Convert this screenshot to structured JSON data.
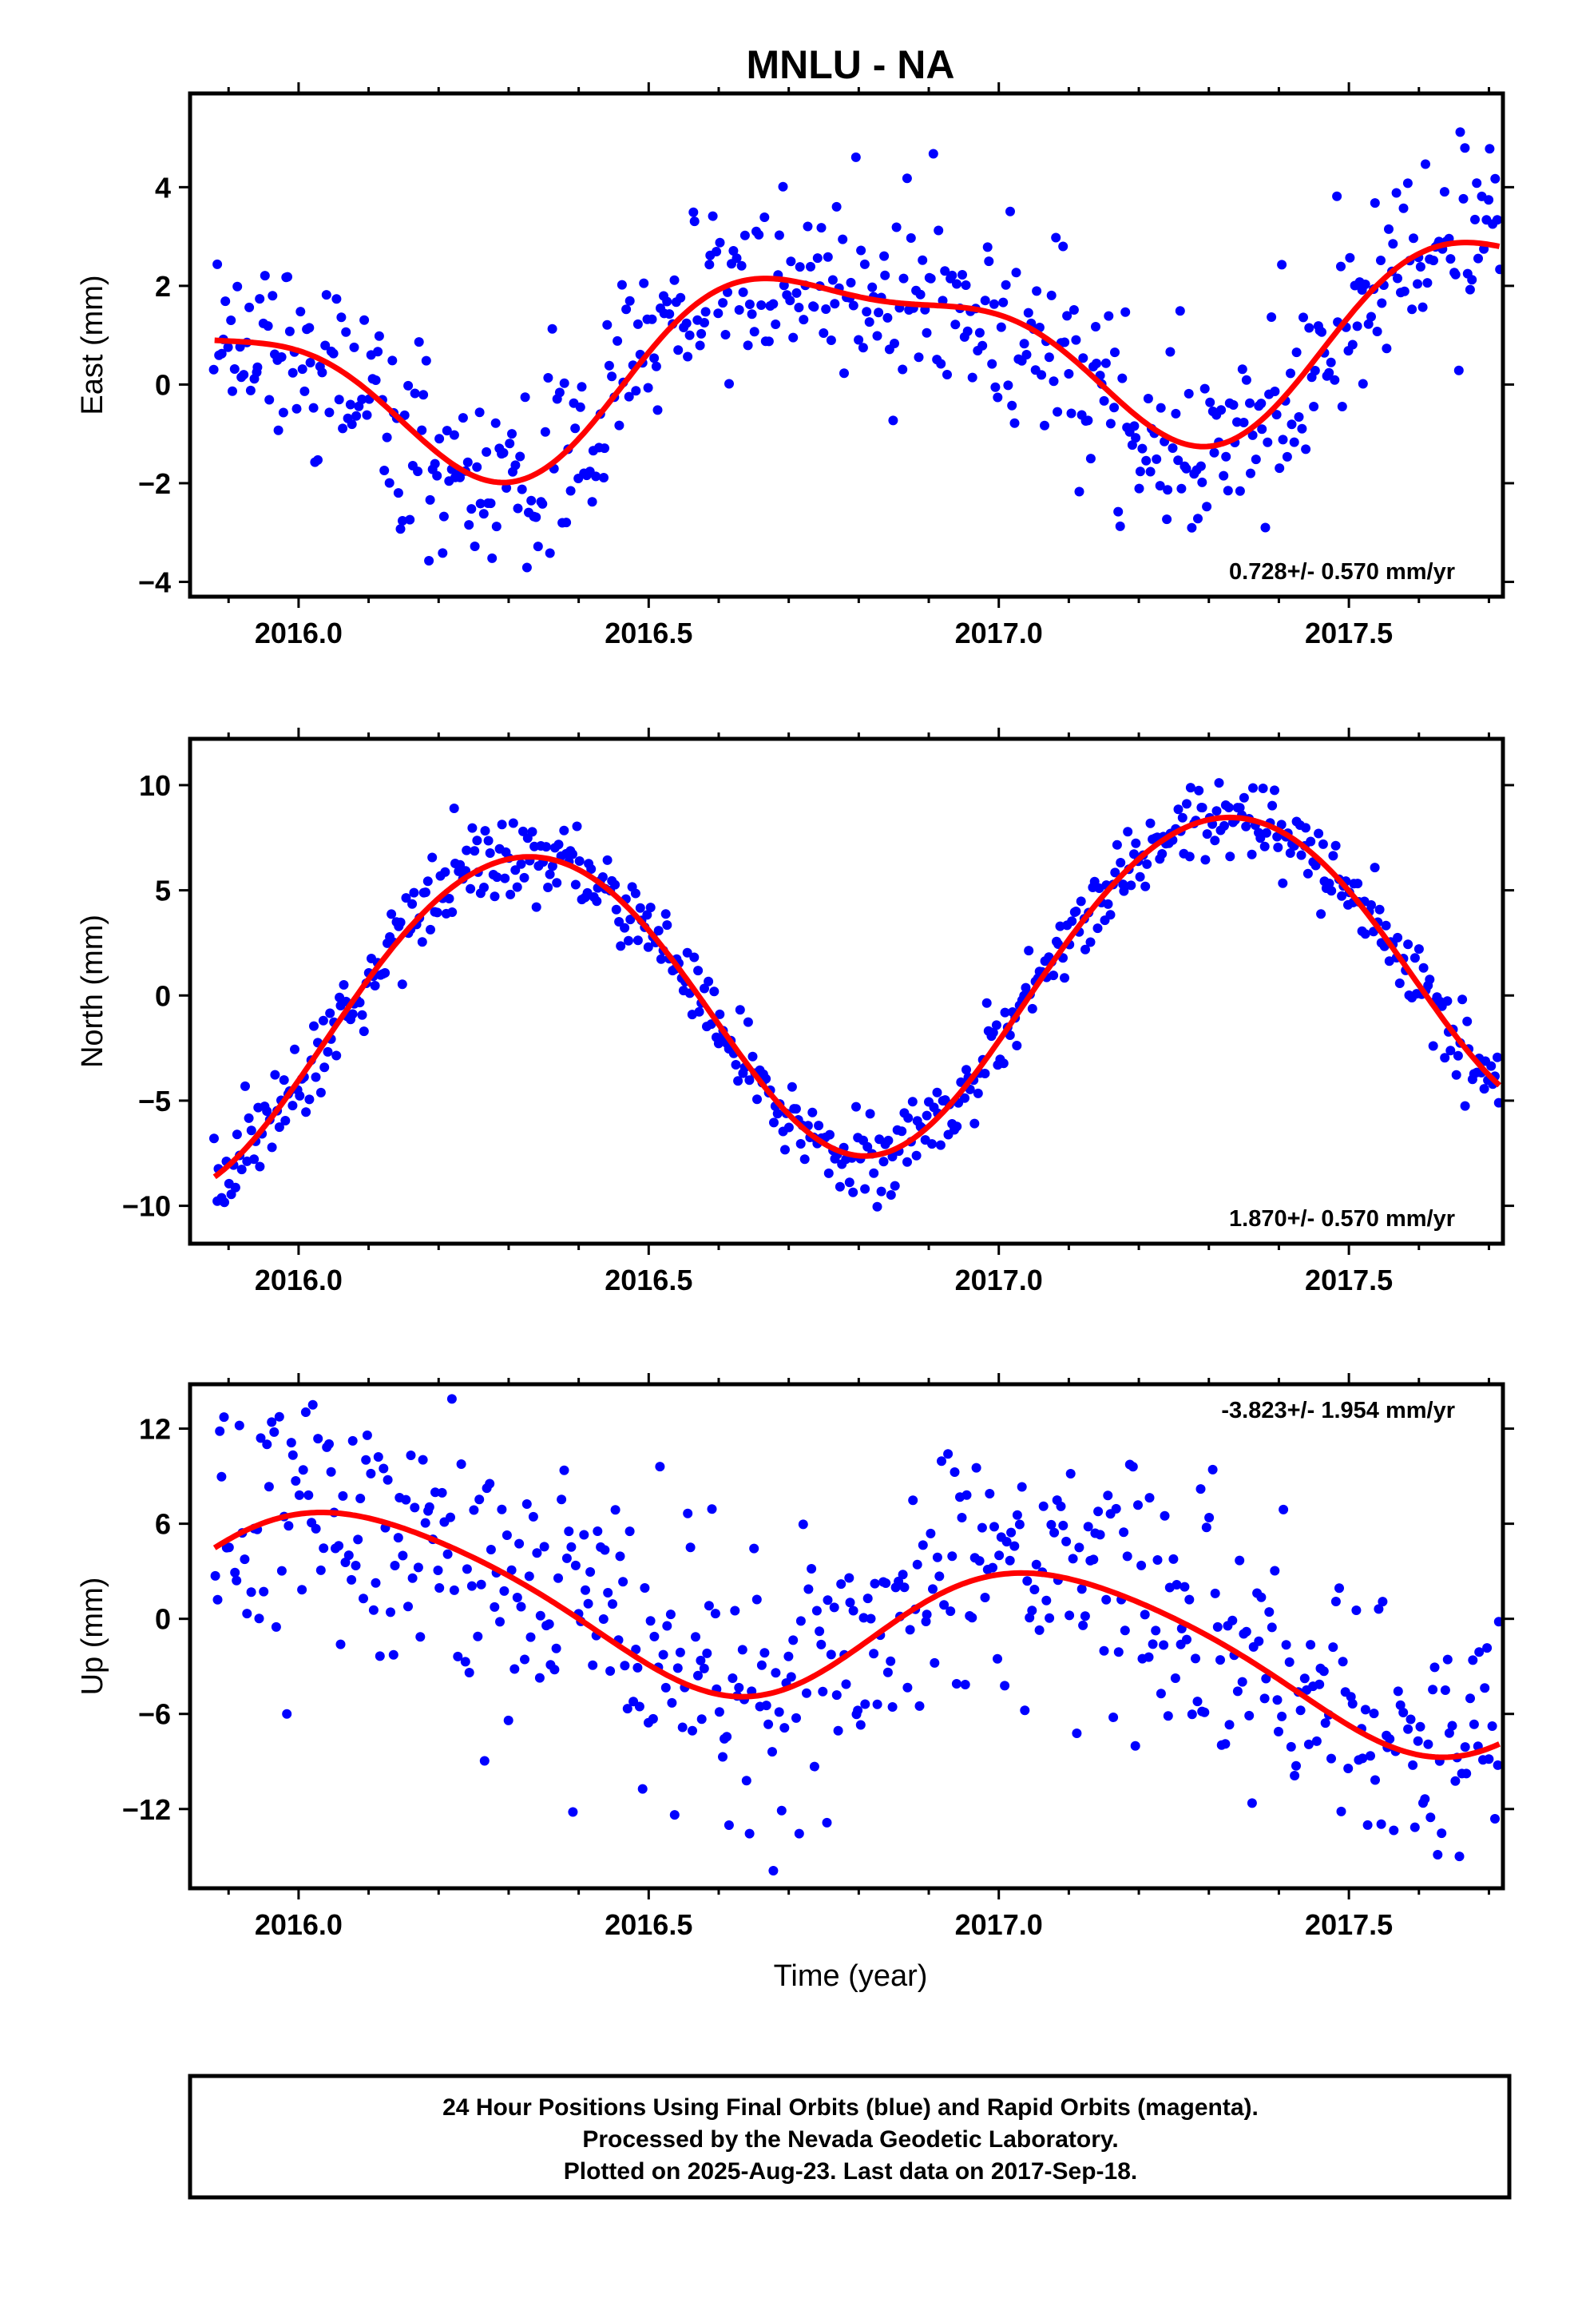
{
  "title": "MNLU - NA",
  "xlabel": "Time (year)",
  "footer": {
    "line1": "24 Hour Positions Using Final Orbits (blue) and Rapid Orbits (magenta).",
    "line2": "Processed by the Nevada Geodetic Laboratory.",
    "line3": "Plotted on 2025-Aug-23. Last data on 2017-Sep-18."
  },
  "colors": {
    "points": "#0000ff",
    "fit": "#ff0000",
    "frame": "#000000"
  },
  "chart_data": [
    {
      "type": "scatter",
      "ylabel": "East (mm)",
      "rate_label": "0.728+/- 0.570 mm/yr",
      "rate_position": "bottom-right",
      "xlim": [
        2015.845,
        2017.72
      ],
      "ylim": [
        -4.3,
        5.9
      ],
      "x_ticks": [
        2016.0,
        2016.5,
        2017.0,
        2017.5
      ],
      "x_tick_labels": [
        "2016.0",
        "2016.5",
        "2017.0",
        "2017.5"
      ],
      "y_ticks": [
        -4,
        -2,
        0,
        2,
        4
      ],
      "y_tick_labels": [
        "−4",
        "−2",
        "0",
        "2",
        "4"
      ],
      "grid": false,
      "model": {
        "trend": 0.728,
        "intercept": 0.45,
        "annual_sin": -1.72,
        "annual_cos": 0.2,
        "semi_sin": 0.45,
        "semi_cos": 0.4,
        "noise": 0.95
      },
      "series": [
        {
          "name": "Final Orbits",
          "color": "#0000ff",
          "x_start": 2015.88,
          "x_end": 2017.715,
          "count": 560,
          "markers": true
        },
        {
          "name": "Fit",
          "color": "#ff0000",
          "x_start": 2015.88,
          "x_end": 2017.715,
          "line": true
        }
      ]
    },
    {
      "type": "scatter",
      "ylabel": "North (mm)",
      "rate_label": "1.870+/- 0.570 mm/yr",
      "rate_position": "bottom-right",
      "xlim": [
        2015.845,
        2017.72
      ],
      "ylim": [
        -11.8,
        12.2
      ],
      "x_ticks": [
        2016.0,
        2016.5,
        2017.0,
        2017.5
      ],
      "x_tick_labels": [
        "2016.0",
        "2016.5",
        "2017.0",
        "2017.5"
      ],
      "y_ticks": [
        -10,
        -5,
        0,
        5,
        10
      ],
      "y_tick_labels": [
        "−10",
        "−5",
        "0",
        "5",
        "10"
      ],
      "grid": false,
      "model": {
        "trend": 1.87,
        "intercept": -0.3,
        "annual_sin": 6.9,
        "annual_cos": -3.1,
        "semi_sin": 0.2,
        "semi_cos": 0.3,
        "noise": 1.0
      },
      "series": [
        {
          "name": "Final Orbits",
          "color": "#0000ff",
          "x_start": 2015.88,
          "x_end": 2017.715,
          "count": 560,
          "markers": true
        },
        {
          "name": "Fit",
          "color": "#ff0000",
          "x_start": 2015.88,
          "x_end": 2017.715,
          "line": true
        }
      ]
    },
    {
      "type": "scatter",
      "ylabel": "Up (mm)",
      "rate_label": "-3.823+/- 1.954 mm/yr",
      "rate_position": "top-right",
      "xlim": [
        2015.845,
        2017.72
      ],
      "ylim": [
        -17.0,
        14.8
      ],
      "x_ticks": [
        2016.0,
        2016.5,
        2017.0,
        2017.5
      ],
      "x_tick_labels": [
        "2016.0",
        "2016.5",
        "2017.0",
        "2017.5"
      ],
      "y_ticks": [
        -12,
        -6,
        0,
        6,
        12
      ],
      "y_tick_labels": [
        "−12",
        "−6",
        "0",
        "6",
        "12"
      ],
      "grid": false,
      "model": {
        "trend": -3.823,
        "intercept": 0.6,
        "annual_sin": 2.6,
        "annual_cos": 3.8,
        "semi_sin": -0.5,
        "semi_cos": 0.3,
        "noise": 4.3
      },
      "series": [
        {
          "name": "Final Orbits",
          "color": "#0000ff",
          "x_start": 2015.88,
          "x_end": 2017.715,
          "count": 520,
          "markers": true
        },
        {
          "name": "Fit",
          "color": "#ff0000",
          "x_start": 2015.88,
          "x_end": 2017.715,
          "line": true
        }
      ]
    }
  ]
}
